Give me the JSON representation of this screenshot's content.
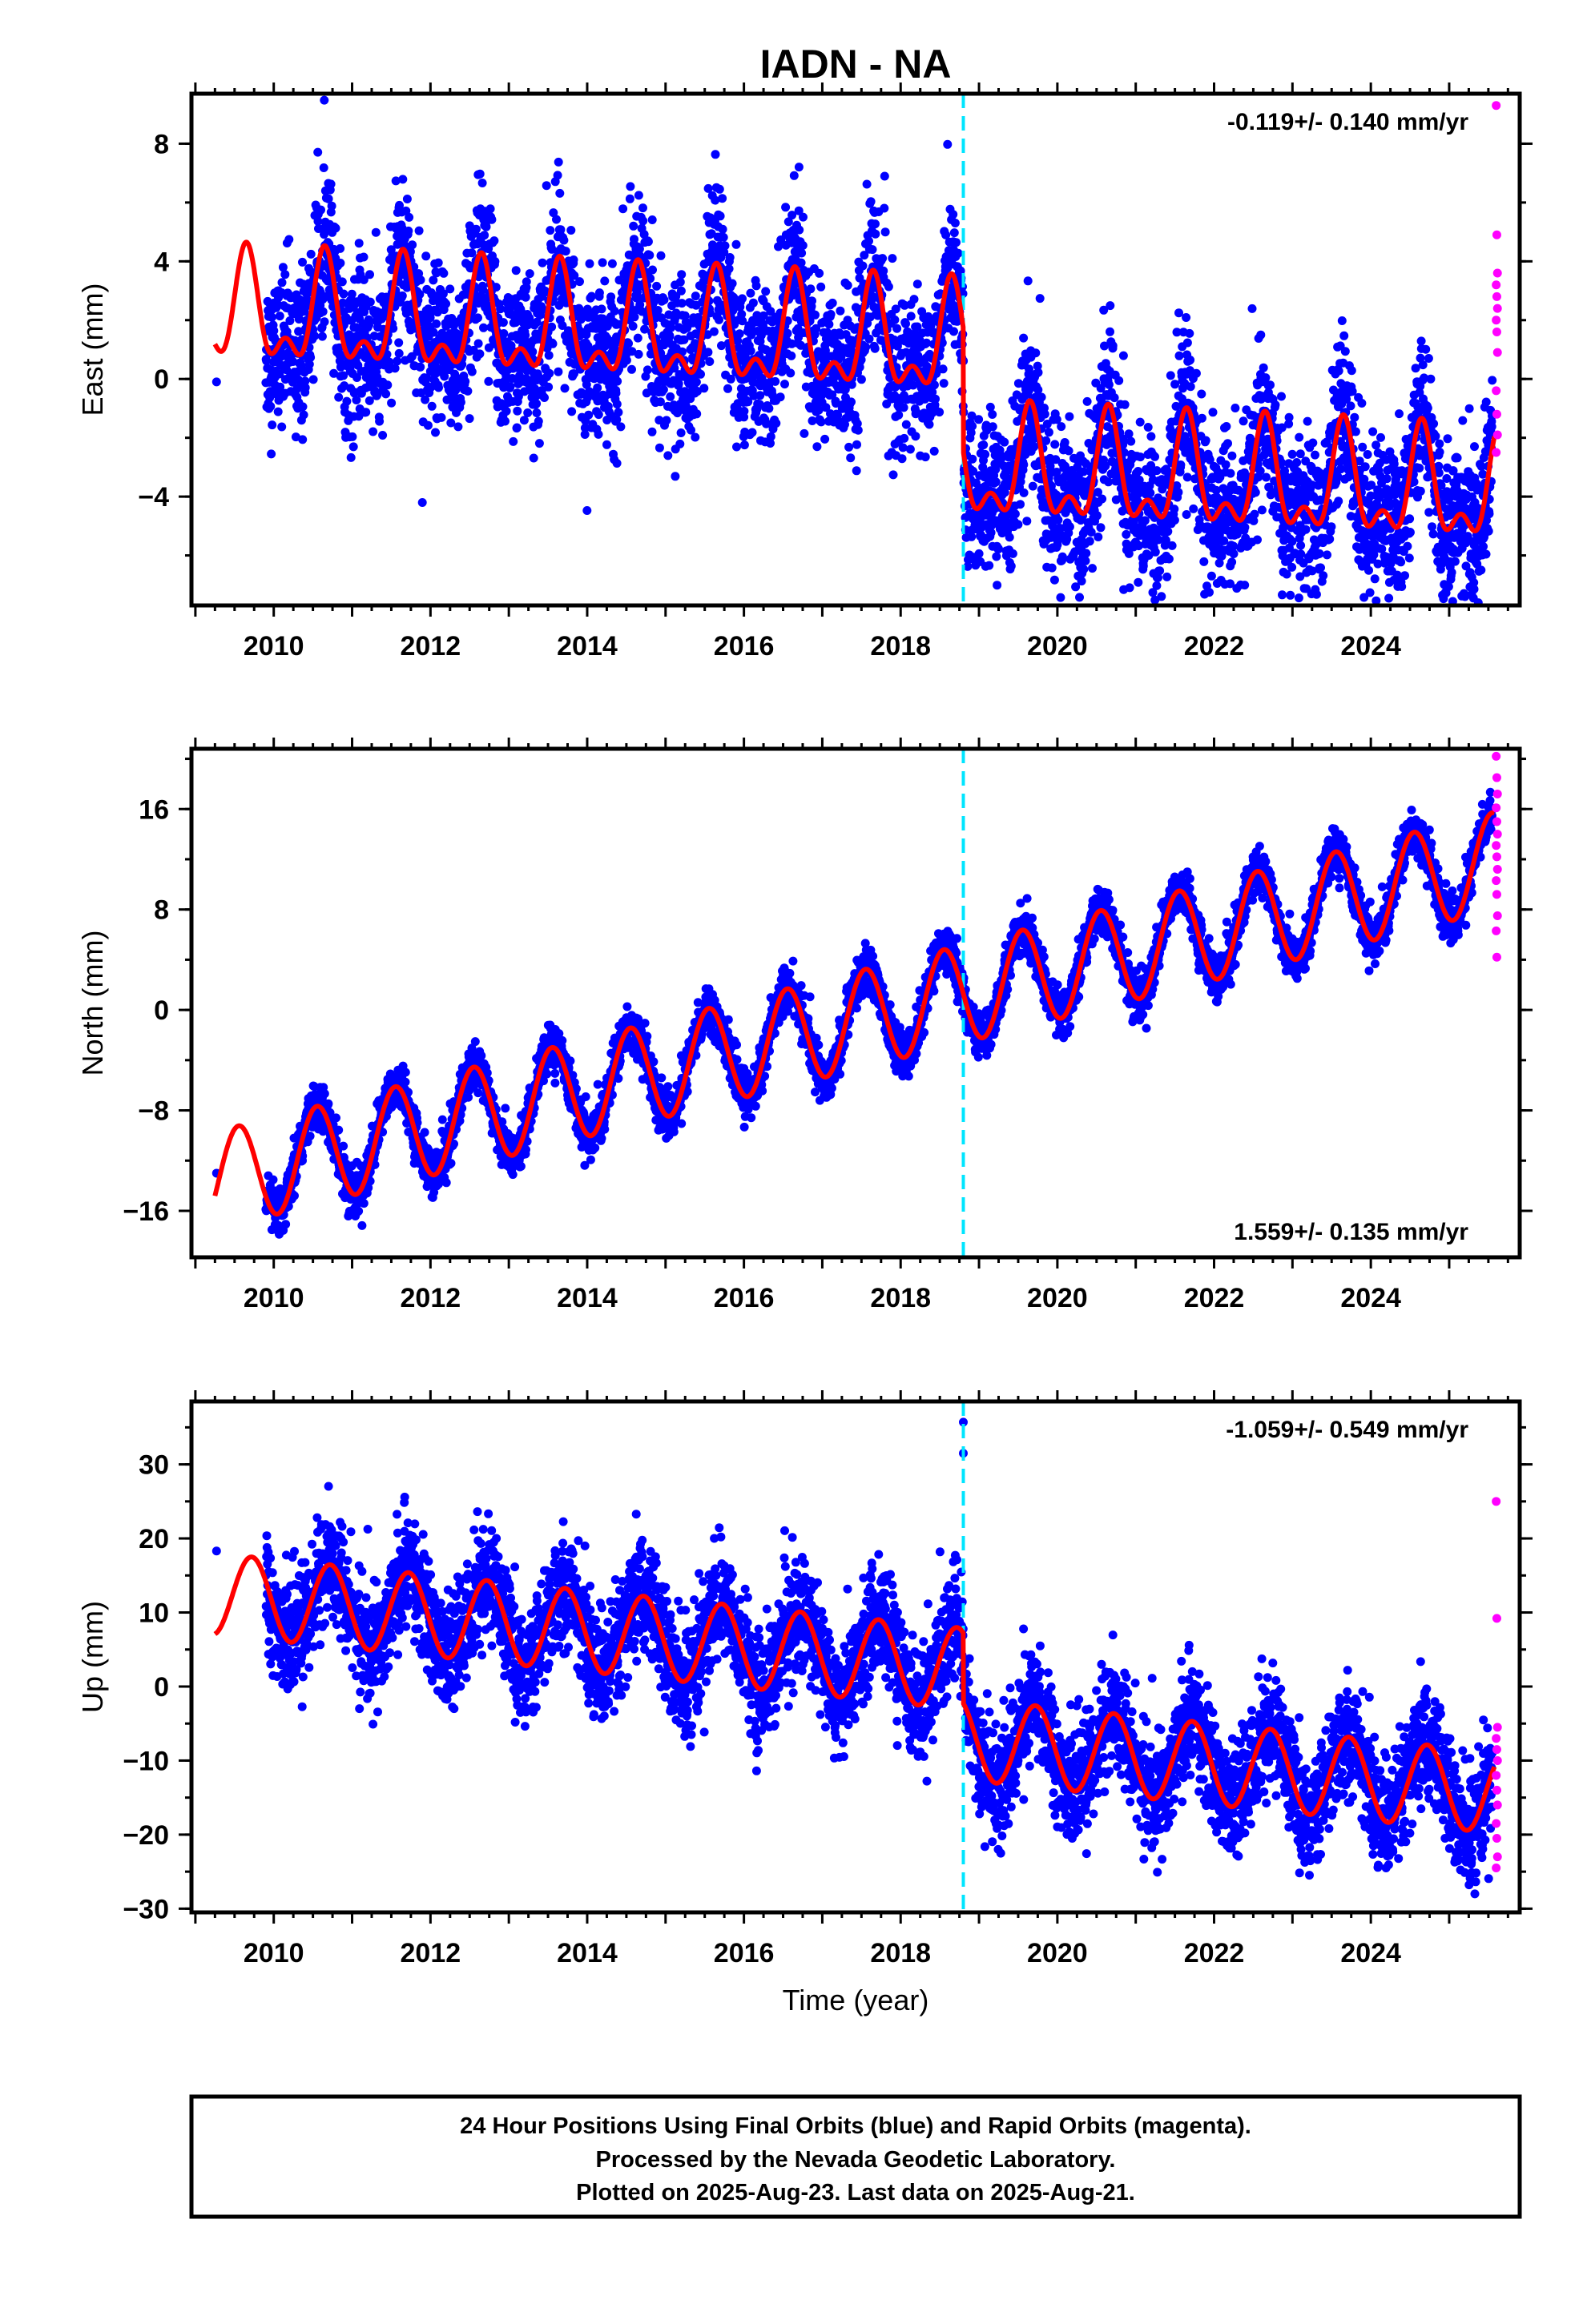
{
  "title": "IADN - NA",
  "xlabel": "Time (year)",
  "footer": {
    "line1": "24 Hour Positions Using Final Orbits (blue) and Rapid Orbits (magenta).",
    "line2": "Processed by the Nevada Geodetic Laboratory.",
    "line3": "Plotted on 2025-Aug-23. Last data on 2025-Aug-21."
  },
  "colors": {
    "final": "#0000ff",
    "rapid": "#ff00ff",
    "model": "#ff0000",
    "break": "#00e5ff"
  },
  "chart_data": [
    {
      "type": "scatter",
      "component": "east",
      "ylabel": "East (mm)",
      "rate": "-0.119+/- 0.140 mm/yr",
      "rate_position": "top-right",
      "xlim": [
        2008.95,
        2025.9
      ],
      "ylim": [
        -7.7,
        9.7
      ],
      "xticks": [
        "2010",
        "2012",
        "2014",
        "2016",
        "2018",
        "2020",
        "2022",
        "2024"
      ],
      "yticks": [
        "8",
        "4",
        "0",
        "−4"
      ],
      "ytick_values": [
        8,
        4,
        0,
        -4
      ],
      "break_epoch": 2018.8,
      "model": {
        "t0": 2009.25,
        "t1": 2025.58,
        "offset_before": 2.2,
        "offset_after": -2.0,
        "trend": -0.119,
        "annual_amp": 1.6,
        "annual_peak": 2009.65,
        "semiannual_amp": 0.9,
        "semiannual_peak": 2009.65
      },
      "final_series": {
        "x_start": 2009.9,
        "x_end": 2025.55,
        "noise": 1.3,
        "first_point": [
          2009.27,
          -0.1
        ]
      },
      "rapid_points": [
        9.3,
        4.9,
        3.6,
        3.2,
        2.8,
        2.4,
        2.0,
        1.6,
        0.9,
        -0.4,
        -1.2,
        -1.9,
        -2.5
      ]
    },
    {
      "type": "scatter",
      "component": "north",
      "ylabel": "North (mm)",
      "rate": "1.559+/- 0.135 mm/yr",
      "rate_position": "bottom-right",
      "xlim": [
        2008.95,
        2025.9
      ],
      "ylim": [
        -19.7,
        20.8
      ],
      "xticks": [
        "2010",
        "2012",
        "2014",
        "2016",
        "2018",
        "2020",
        "2022",
        "2024"
      ],
      "yticks": [
        "16",
        "8",
        "0",
        "−8",
        "−16"
      ],
      "ytick_values": [
        16,
        8,
        0,
        -8,
        -16
      ],
      "break_epoch": 2018.8,
      "model": {
        "t0": 2009.25,
        "t1": 2025.58,
        "offset_before": 0,
        "offset_after": 0,
        "trend": 1.559,
        "trend_anchor": [
          2009.25,
          -13.6
        ],
        "annual_amp": 3.9,
        "annual_peak": 2009.55,
        "semiannual_amp": 0.0,
        "semiannual_peak": 2009.55
      },
      "final_series": {
        "x_start": 2009.9,
        "x_end": 2025.55,
        "noise": 0.9,
        "first_point": [
          2009.27,
          -13.0
        ]
      },
      "rapid_points": [
        20.2,
        18.5,
        17.2,
        16.1,
        15.0,
        14.0,
        13.1,
        12.2,
        11.2,
        10.3,
        9.2,
        7.5,
        6.3,
        4.2
      ]
    },
    {
      "type": "scatter",
      "component": "up",
      "ylabel": "Up (mm)",
      "rate": "-1.059+/- 0.549 mm/yr",
      "rate_position": "top-right",
      "xlim": [
        2008.95,
        2025.9
      ],
      "ylim": [
        -30.5,
        38.5
      ],
      "xticks": [
        "2010",
        "2012",
        "2014",
        "2016",
        "2018",
        "2020",
        "2022",
        "2024"
      ],
      "yticks": [
        "30",
        "20",
        "10",
        "0",
        "−10",
        "−20",
        "−30"
      ],
      "ytick_values": [
        30,
        20,
        10,
        0,
        -10,
        -20,
        -30
      ],
      "break_epoch": 2018.8,
      "model": {
        "t0": 2009.25,
        "t1": 2025.58,
        "offset_before": 12.5,
        "offset_after": 3.0,
        "trend": -1.059,
        "annual_amp": 5.5,
        "annual_peak": 2009.72,
        "semiannual_amp": 0.0,
        "semiannual_peak": 2009.72
      },
      "final_series": {
        "x_start": 2009.9,
        "x_end": 2025.55,
        "noise": 3.8,
        "first_point": [
          2009.27,
          18.3
        ]
      },
      "break_points": [
        35.7,
        31.5
      ],
      "rapid_points": [
        25.0,
        9.2,
        -5.5,
        -7.0,
        -8.5,
        -10.0,
        -12.0,
        -14.0,
        -16.0,
        -18.5,
        -20.5,
        -23.0,
        -24.5
      ]
    }
  ]
}
